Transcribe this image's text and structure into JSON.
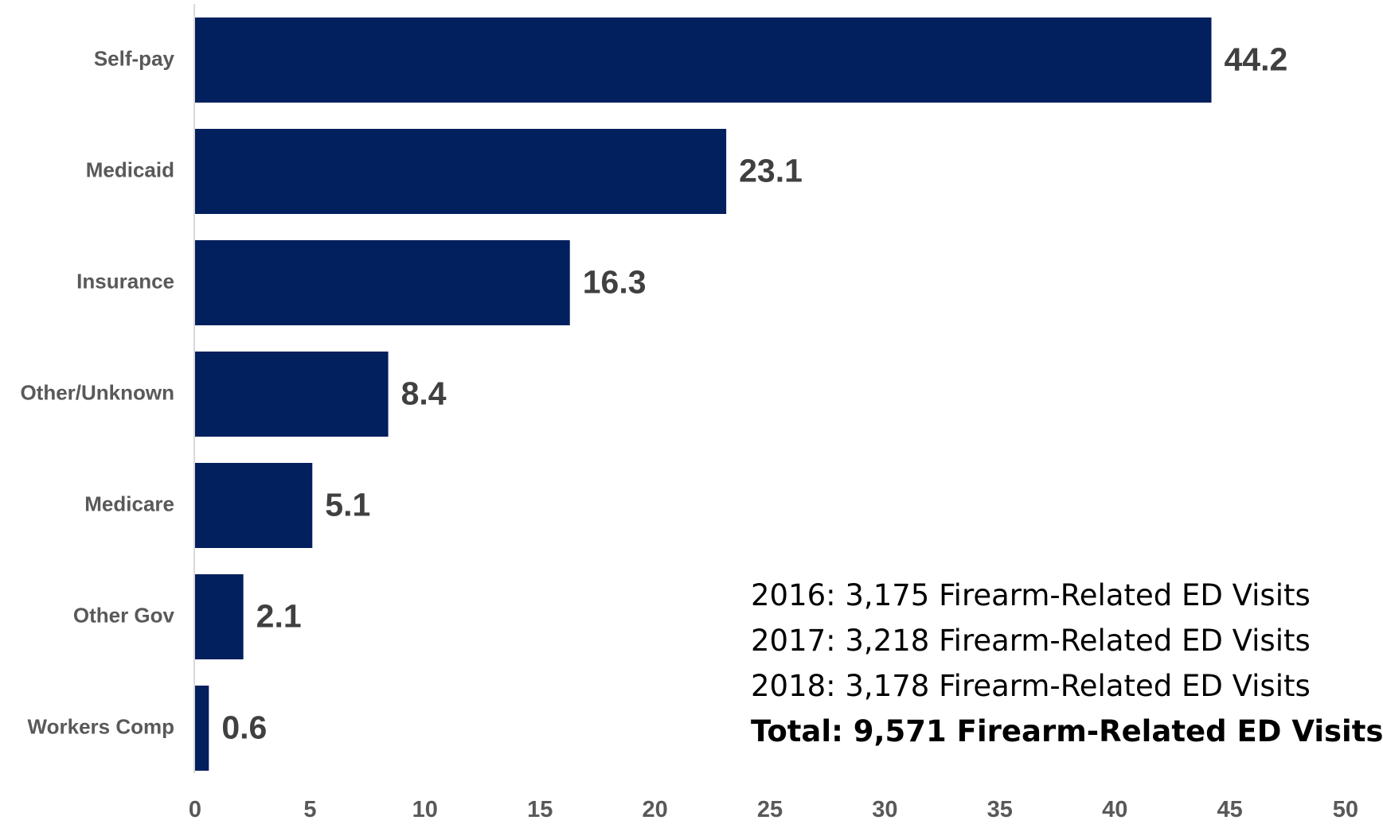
{
  "chart_data": {
    "type": "bar",
    "orientation": "horizontal",
    "categories": [
      "Self-pay",
      "Medicaid",
      "Insurance",
      "Other/Unknown",
      "Medicare",
      "Other Gov",
      "Workers Comp"
    ],
    "values": [
      44.2,
      23.1,
      16.3,
      8.4,
      5.1,
      2.1,
      0.6
    ],
    "value_labels": [
      "44.2",
      "23.1",
      "16.3",
      "8.4",
      "5.1",
      "2.1",
      "0.6"
    ],
    "xlim": [
      0,
      50
    ],
    "xticks": [
      0,
      5,
      10,
      15,
      20,
      25,
      30,
      35,
      40,
      45,
      50
    ],
    "grid": false,
    "bar_color": "#021F5E",
    "title": "",
    "xlabel": "",
    "ylabel": ""
  },
  "notes": [
    "2016: 3,175 Firearm-Related ED Visits",
    "2017: 3,218 Firearm-Related ED Visits",
    "2018: 3,178 Firearm-Related ED Visits"
  ],
  "total_note": "Total: 9,571 Firearm-Related ED Visits"
}
